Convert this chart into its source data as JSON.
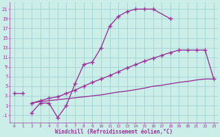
{
  "background_color": "#cceee8",
  "grid_color": "#99cccc",
  "line_color": "#993399",
  "marker": "+",
  "marker_size": 4,
  "line_width": 1.0,
  "xlim": [
    -0.5,
    23.5
  ],
  "ylim": [
    -2.5,
    22.5
  ],
  "xticks": [
    0,
    1,
    2,
    3,
    4,
    5,
    6,
    7,
    8,
    9,
    10,
    11,
    12,
    13,
    14,
    15,
    16,
    17,
    18,
    19,
    20,
    21,
    22,
    23
  ],
  "yticks": [
    -1,
    1,
    3,
    5,
    7,
    9,
    11,
    13,
    15,
    17,
    19,
    21
  ],
  "xlabel": "Windchill (Refroidissement éolien,°C)",
  "curve1_x": [
    0,
    1
  ],
  "curve1_y": [
    3.5,
    3.5
  ],
  "curve2_x": [
    2,
    3,
    4,
    5,
    6,
    7,
    8,
    9,
    10,
    11,
    12,
    13,
    14,
    15,
    16,
    18
  ],
  "curve2_y": [
    -0.5,
    1.5,
    1.5,
    -1.5,
    1.0,
    5.5,
    9.5,
    10.0,
    13.0,
    17.5,
    19.5,
    20.5,
    21.0,
    21.0,
    21.0,
    19.0
  ],
  "curve3_x": [
    2,
    3,
    4,
    5,
    6,
    7,
    8,
    9,
    10,
    11,
    12,
    13,
    14,
    15,
    16,
    17,
    18,
    19,
    20,
    21,
    22,
    23
  ],
  "curve3_y": [
    1.5,
    2.0,
    2.5,
    2.8,
    3.5,
    4.2,
    5.0,
    5.8,
    6.5,
    7.2,
    8.0,
    8.8,
    9.5,
    10.2,
    10.8,
    11.4,
    12.0,
    12.5,
    12.5,
    12.5,
    12.5,
    6.5
  ],
  "curve4_x": [
    2,
    3,
    4,
    5,
    6,
    7,
    8,
    9,
    10,
    11,
    12,
    13,
    14,
    15,
    16,
    17,
    18,
    19,
    20,
    21,
    22,
    23
  ],
  "curve4_y": [
    1.5,
    1.8,
    2.0,
    2.2,
    2.4,
    2.6,
    2.8,
    3.0,
    3.2,
    3.5,
    3.8,
    4.0,
    4.3,
    4.6,
    5.0,
    5.2,
    5.5,
    5.8,
    6.0,
    6.3,
    6.5,
    6.5
  ]
}
